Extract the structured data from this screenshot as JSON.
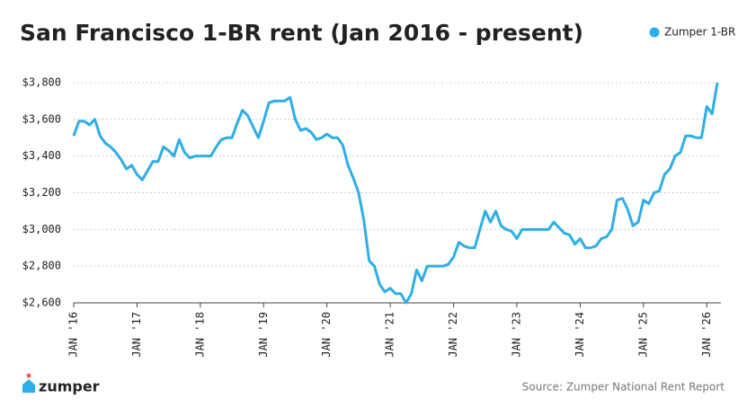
{
  "chart_data": {
    "type": "line",
    "title": "San Francisco 1-BR rent (Jan 2016 - present)",
    "x": [
      "2016-01",
      "2016-02",
      "2016-03",
      "2016-04",
      "2016-05",
      "2016-06",
      "2016-07",
      "2016-08",
      "2016-09",
      "2016-10",
      "2016-11",
      "2016-12",
      "2017-01",
      "2017-02",
      "2017-03",
      "2017-04",
      "2017-05",
      "2017-06",
      "2017-07",
      "2017-08",
      "2017-09",
      "2017-10",
      "2017-11",
      "2017-12",
      "2018-01",
      "2018-02",
      "2018-03",
      "2018-04",
      "2018-05",
      "2018-06",
      "2018-07",
      "2018-08",
      "2018-09",
      "2018-10",
      "2018-11",
      "2018-12",
      "2019-01",
      "2019-02",
      "2019-03",
      "2019-04",
      "2019-05",
      "2019-06",
      "2019-07",
      "2019-08",
      "2019-09",
      "2019-10",
      "2019-11",
      "2019-12",
      "2020-01",
      "2020-02",
      "2020-03",
      "2020-04",
      "2020-05",
      "2020-06",
      "2020-07",
      "2020-08",
      "2020-09",
      "2020-10",
      "2020-11",
      "2020-12",
      "2021-01",
      "2021-02",
      "2021-03",
      "2021-04",
      "2021-05",
      "2021-06",
      "2021-07",
      "2021-08",
      "2021-09",
      "2021-10",
      "2021-11",
      "2021-12",
      "2022-01",
      "2022-02",
      "2022-03",
      "2022-04",
      "2022-05",
      "2022-06",
      "2022-07",
      "2022-08",
      "2022-09",
      "2022-10",
      "2022-11",
      "2022-12",
      "2023-01",
      "2023-02",
      "2023-03",
      "2023-04",
      "2023-05",
      "2023-06",
      "2023-07",
      "2023-08",
      "2023-09",
      "2023-10",
      "2023-11",
      "2023-12",
      "2024-01",
      "2024-02",
      "2024-03",
      "2024-04",
      "2024-05",
      "2024-06",
      "2024-07",
      "2024-08",
      "2024-09",
      "2024-10",
      "2024-11",
      "2024-12",
      "2025-01",
      "2025-02",
      "2025-03",
      "2025-04",
      "2025-05",
      "2025-06",
      "2025-07",
      "2025-08",
      "2025-09",
      "2025-10",
      "2025-11",
      "2025-12",
      "2026-01",
      "2026-02",
      "2026-03"
    ],
    "series": [
      {
        "name": "Zumper 1-BR",
        "color": "#2eaee6",
        "values": [
          3510,
          3590,
          3590,
          3570,
          3600,
          3510,
          3470,
          3450,
          3420,
          3380,
          3330,
          3350,
          3300,
          3270,
          3320,
          3370,
          3370,
          3450,
          3430,
          3400,
          3490,
          3420,
          3390,
          3400,
          3400,
          3400,
          3400,
          3450,
          3490,
          3500,
          3500,
          3580,
          3650,
          3620,
          3560,
          3500,
          3590,
          3690,
          3700,
          3700,
          3700,
          3720,
          3600,
          3540,
          3550,
          3530,
          3490,
          3500,
          3520,
          3500,
          3500,
          3460,
          3350,
          3280,
          3200,
          3050,
          2830,
          2800,
          2700,
          2660,
          2680,
          2650,
          2650,
          2600,
          2650,
          2780,
          2720,
          2800,
          2800,
          2800,
          2800,
          2810,
          2850,
          2930,
          2910,
          2900,
          2900,
          3000,
          3100,
          3040,
          3100,
          3020,
          3000,
          2990,
          2950,
          3000,
          3000,
          3000,
          3000,
          3000,
          3000,
          3040,
          3010,
          2980,
          2970,
          2920,
          2950,
          2900,
          2900,
          2910,
          2950,
          2960,
          3000,
          3160,
          3170,
          3110,
          3020,
          3040,
          3160,
          3140,
          3200,
          3210,
          3300,
          3330,
          3400,
          3420,
          3510,
          3510,
          3500,
          3500,
          3670,
          3630,
          3800
        ]
      }
    ],
    "xlim": [
      "2016-01",
      "2026-03"
    ],
    "xticks": [
      {
        "value": "2016-01",
        "label": "JAN '16"
      },
      {
        "value": "2017-01",
        "label": "JAN '17"
      },
      {
        "value": "2018-01",
        "label": "JAN '18"
      },
      {
        "value": "2019-01",
        "label": "JAN '19"
      },
      {
        "value": "2020-01",
        "label": "JAN '20"
      },
      {
        "value": "2021-01",
        "label": "JAN '21"
      },
      {
        "value": "2022-01",
        "label": "JAN '22"
      },
      {
        "value": "2023-01",
        "label": "JAN '23"
      },
      {
        "value": "2024-01",
        "label": "JAN '24"
      },
      {
        "value": "2025-01",
        "label": "JAN '25"
      },
      {
        "value": "2026-01",
        "label": "JAN '26"
      }
    ],
    "ylim": [
      2600,
      3800
    ],
    "yticks": [
      {
        "value": 2600,
        "label": "$2,600"
      },
      {
        "value": 2800,
        "label": "$2,800"
      },
      {
        "value": 3000,
        "label": "$3,000"
      },
      {
        "value": 3200,
        "label": "$3,200"
      },
      {
        "value": 3400,
        "label": "$3,400"
      },
      {
        "value": 3600,
        "label": "$3,600"
      },
      {
        "value": 3800,
        "label": "$3,800"
      }
    ],
    "grid": true,
    "legend": "top-right"
  },
  "footer": {
    "logo": "zumper",
    "source": "Source: Zumper National Rent Report"
  }
}
